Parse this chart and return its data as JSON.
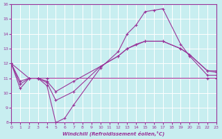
{
  "xlabel": "Windchill (Refroidissement éolien,°C)",
  "xlim": [
    0,
    23
  ],
  "ylim": [
    8,
    16
  ],
  "xticks": [
    0,
    1,
    2,
    3,
    4,
    5,
    6,
    7,
    8,
    9,
    10,
    11,
    12,
    13,
    14,
    15,
    16,
    17,
    18,
    19,
    20,
    21,
    22,
    23
  ],
  "yticks": [
    8,
    9,
    10,
    11,
    12,
    13,
    14,
    15,
    16
  ],
  "bg_color": "#c8eef0",
  "grid_color": "#ffffff",
  "line_color": "#993399",
  "line1_x": [
    0,
    1,
    2,
    3,
    4,
    5,
    6,
    7,
    10,
    12,
    13,
    14,
    15,
    16,
    17,
    19,
    20,
    22,
    23
  ],
  "line1_y": [
    12,
    10.3,
    11.0,
    11.0,
    10.5,
    8.0,
    8.3,
    9.2,
    11.7,
    12.8,
    14.0,
    14.6,
    15.5,
    15.6,
    15.7,
    13.3,
    12.5,
    11.2,
    11.2
  ],
  "line2_x": [
    0,
    2,
    3,
    4,
    22,
    23
  ],
  "line2_y": [
    12,
    11.0,
    11.0,
    11.0,
    11.0,
    11.0
  ],
  "line3_x": [
    0,
    1,
    2,
    3,
    4,
    5,
    7,
    10,
    12,
    13,
    15,
    17,
    19,
    20,
    22,
    23
  ],
  "line3_y": [
    12,
    10.6,
    11.0,
    11.0,
    10.8,
    10.1,
    10.8,
    11.8,
    12.5,
    13.0,
    13.5,
    13.5,
    13.0,
    12.6,
    11.5,
    11.4
  ],
  "line4_x": [
    0,
    1,
    2,
    3,
    4,
    5,
    7,
    10,
    12,
    13,
    14,
    15,
    17,
    19,
    20,
    22,
    23
  ],
  "line4_y": [
    12,
    10.8,
    11.0,
    11.0,
    10.7,
    9.5,
    10.1,
    11.8,
    12.5,
    13.0,
    13.3,
    13.5,
    13.5,
    13.0,
    12.6,
    11.5,
    11.5
  ]
}
